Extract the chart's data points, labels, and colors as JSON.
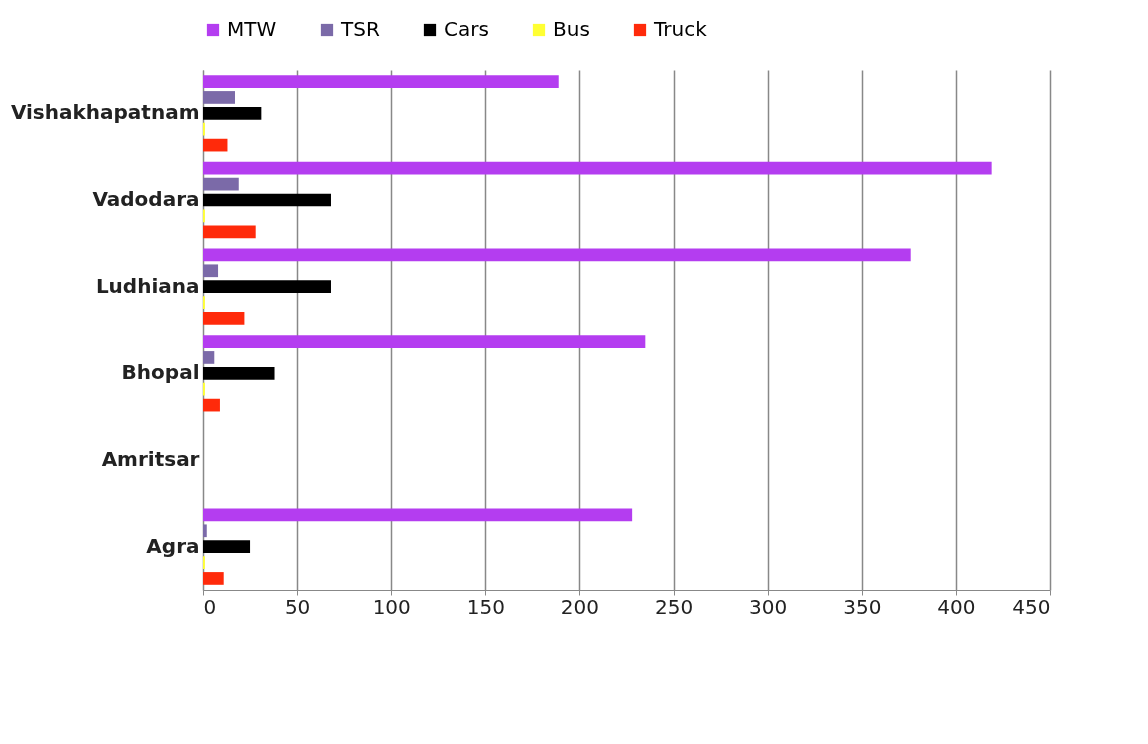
{
  "chart_data": {
    "type": "bar",
    "orientation": "horizontal",
    "categories": [
      "Vishakhapatnam",
      "Vadodara",
      "Ludhiana",
      "Bhopal",
      "Amritsar",
      "Agra"
    ],
    "series": [
      {
        "name": "MTW",
        "color": "#b43df0",
        "values": [
          189,
          419,
          376,
          235,
          0,
          228
        ]
      },
      {
        "name": "TSR",
        "color": "#7b6aa8",
        "values": [
          17,
          19,
          8,
          6,
          0,
          2
        ]
      },
      {
        "name": "Cars",
        "color": "#000000",
        "values": [
          31,
          68,
          68,
          38,
          0,
          25
        ]
      },
      {
        "name": "Bus",
        "color": "#ffff33",
        "values": [
          1,
          1,
          1,
          1,
          0,
          1
        ]
      },
      {
        "name": "Truck",
        "color": "#ff2a0a",
        "values": [
          13,
          28,
          22,
          9,
          0,
          11
        ]
      }
    ],
    "xlim": [
      0,
      450
    ],
    "xticks": [
      0,
      50,
      100,
      150,
      200,
      250,
      300,
      350,
      400,
      450
    ],
    "grid": "x",
    "legend": "top"
  }
}
